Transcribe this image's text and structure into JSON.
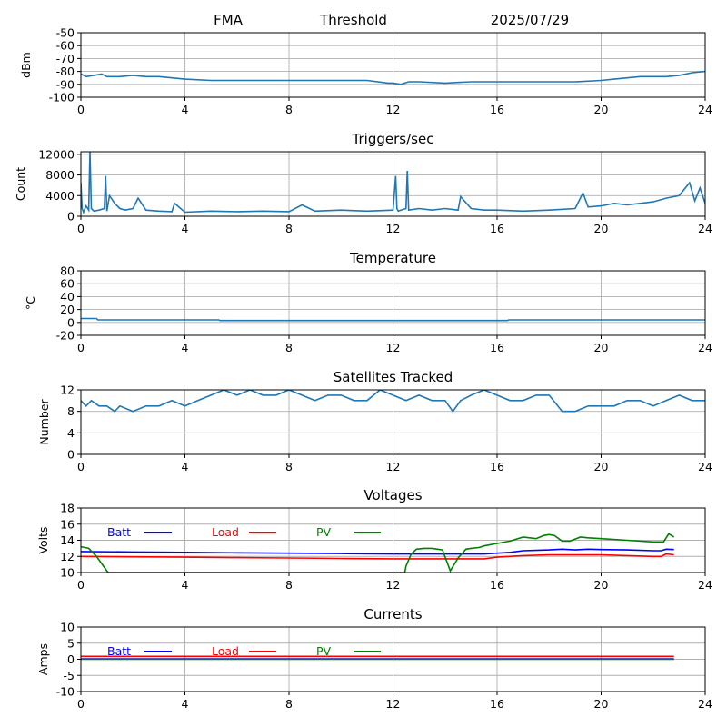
{
  "header": {
    "station": "FMA",
    "mode": "Threshold",
    "date": "2025/07/29"
  },
  "colors": {
    "series": "#1f77b4",
    "batt": "#0000ff",
    "load": "#ff0000",
    "pv": "#008000",
    "grid": "#b0b0b0",
    "axes": "#000000"
  },
  "chart_data": [
    {
      "type": "line",
      "title": "",
      "ylabel": "dBm",
      "xlim": [
        0,
        24
      ],
      "ylim": [
        -100,
        -50
      ],
      "xticks": [
        0,
        4,
        8,
        12,
        16,
        20,
        24
      ],
      "yticks": [
        -100,
        -90,
        -80,
        -70,
        -60,
        -50
      ],
      "grid": true,
      "series": [
        {
          "x": [
            0,
            0.2,
            0.5,
            0.8,
            1.0,
            1.5,
            2.0,
            2.5,
            3.0,
            3.5,
            4.0,
            5.0,
            6.0,
            7.0,
            8.0,
            9.0,
            10.0,
            11.0,
            11.8,
            12.0,
            12.3,
            12.6,
            13.0,
            14.0,
            15.0,
            16.0,
            17.0,
            18.0,
            19.0,
            20.0,
            20.5,
            21.0,
            21.5,
            22.0,
            22.5,
            23.0,
            23.5,
            24.0
          ],
          "y": [
            -82,
            -84,
            -83,
            -82,
            -84,
            -84,
            -83,
            -84,
            -84,
            -85,
            -86,
            -87,
            -87,
            -87,
            -87,
            -87,
            -87,
            -87,
            -89,
            -89,
            -90,
            -88,
            -88,
            -89,
            -88,
            -88,
            -88,
            -88,
            -88,
            -87,
            -86,
            -85,
            -84,
            -84,
            -84,
            -83,
            -81,
            -80
          ]
        }
      ]
    },
    {
      "type": "line",
      "title": "Triggers/sec",
      "ylabel": "Count",
      "xlim": [
        0,
        24
      ],
      "ylim": [
        0,
        12500
      ],
      "xticks": [
        0,
        4,
        8,
        12,
        16,
        20,
        24
      ],
      "yticks": [
        0,
        4000,
        8000,
        12000
      ],
      "grid": true,
      "series": [
        {
          "x": [
            0,
            0.05,
            0.1,
            0.2,
            0.3,
            0.35,
            0.4,
            0.5,
            0.7,
            0.9,
            0.95,
            1.0,
            1.1,
            1.3,
            1.5,
            1.7,
            2.0,
            2.2,
            2.5,
            3.0,
            3.5,
            3.6,
            4.0,
            5.0,
            6.0,
            7.0,
            8.0,
            8.5,
            9.0,
            10.0,
            11.0,
            12.0,
            12.1,
            12.15,
            12.2,
            12.3,
            12.5,
            12.55,
            12.6,
            13.0,
            13.5,
            14.0,
            14.5,
            14.6,
            15.0,
            15.5,
            16.0,
            17.0,
            18.0,
            19.0,
            19.3,
            19.5,
            20.0,
            20.5,
            21.0,
            21.5,
            22.0,
            22.5,
            23.0,
            23.4,
            23.6,
            23.8,
            24.0
          ],
          "y": [
            6500,
            1500,
            800,
            2000,
            1200,
            12500,
            1500,
            1000,
            1200,
            1500,
            7800,
            1000,
            4000,
            2500,
            1500,
            1200,
            1500,
            3500,
            1200,
            1000,
            900,
            2500,
            800,
            1000,
            900,
            1000,
            900,
            2200,
            1000,
            1200,
            1000,
            1200,
            7800,
            1500,
            1000,
            1200,
            1500,
            8800,
            1200,
            1500,
            1200,
            1500,
            1200,
            3800,
            1500,
            1200,
            1200,
            1000,
            1200,
            1500,
            4500,
            1800,
            2000,
            2500,
            2200,
            2500,
            2800,
            3500,
            4000,
            6500,
            3000,
            5500,
            2500
          ]
        }
      ]
    },
    {
      "type": "line",
      "title": "Temperature",
      "ylabel": "°C",
      "xlim": [
        0,
        24
      ],
      "ylim": [
        -20,
        80
      ],
      "xticks": [
        0,
        4,
        8,
        12,
        16,
        20,
        24
      ],
      "yticks": [
        -20,
        0,
        20,
        40,
        60,
        80
      ],
      "grid": true,
      "series": [
        {
          "x": [
            0,
            0.6,
            0.65,
            5.3,
            5.35,
            16.4,
            16.45,
            24.0
          ],
          "y": [
            6,
            6,
            4,
            4,
            3,
            3,
            4,
            4
          ]
        }
      ]
    },
    {
      "type": "line",
      "title": "Satellites Tracked",
      "ylabel": "Number",
      "xlim": [
        0,
        24
      ],
      "ylim": [
        0,
        12
      ],
      "xticks": [
        0,
        4,
        8,
        12,
        16,
        20,
        24
      ],
      "yticks": [
        0,
        4,
        8,
        12
      ],
      "grid": true,
      "series": [
        {
          "x": [
            0,
            0.2,
            0.4,
            0.7,
            1.0,
            1.3,
            1.5,
            2.0,
            2.5,
            3.0,
            3.5,
            4.0,
            4.5,
            5.0,
            5.5,
            6.0,
            6.5,
            7.0,
            7.5,
            8.0,
            8.5,
            9.0,
            9.5,
            10.0,
            10.5,
            11.0,
            11.5,
            12.0,
            12.5,
            13.0,
            13.5,
            14.0,
            14.3,
            14.6,
            15.0,
            15.5,
            16.0,
            16.5,
            17.0,
            17.5,
            18.0,
            18.5,
            19.0,
            19.5,
            20.0,
            20.5,
            21.0,
            21.5,
            22.0,
            22.5,
            23.0,
            23.5,
            24.0
          ],
          "y": [
            10,
            9,
            10,
            9,
            9,
            8,
            9,
            8,
            9,
            9,
            10,
            9,
            10,
            11,
            12,
            11,
            12,
            11,
            11,
            12,
            11,
            10,
            11,
            11,
            10,
            10,
            12,
            11,
            10,
            11,
            10,
            10,
            8,
            10,
            11,
            12,
            11,
            10,
            10,
            11,
            11,
            8,
            8,
            9,
            9,
            9,
            10,
            10,
            9,
            10,
            11,
            10,
            10
          ]
        }
      ]
    },
    {
      "type": "line",
      "title": "Voltages",
      "ylabel": "Volts",
      "xlim": [
        0,
        24
      ],
      "ylim": [
        10,
        18
      ],
      "xticks": [
        0,
        4,
        8,
        12,
        16,
        20,
        24
      ],
      "yticks": [
        10,
        12,
        14,
        16,
        18
      ],
      "grid": true,
      "legend": "top-left, horizontal",
      "series": [
        {
          "name": "Batt",
          "color": "#0000ff",
          "x": [
            0,
            2,
            4,
            6,
            8,
            10,
            12,
            14,
            15.5,
            16.5,
            17,
            18,
            18.5,
            19,
            19.5,
            20,
            21,
            22,
            22.3,
            22.5,
            22.8
          ],
          "y": [
            12.6,
            12.55,
            12.5,
            12.45,
            12.4,
            12.35,
            12.3,
            12.3,
            12.3,
            12.5,
            12.7,
            12.8,
            12.9,
            12.8,
            12.9,
            12.85,
            12.8,
            12.7,
            12.7,
            12.9,
            12.85
          ]
        },
        {
          "name": "Load",
          "color": "#ff0000",
          "x": [
            0,
            2,
            4,
            6,
            8,
            10,
            12,
            14,
            15.5,
            16,
            17,
            18,
            19,
            20,
            21,
            22,
            22.3,
            22.5,
            22.8
          ],
          "y": [
            12.0,
            11.95,
            11.9,
            11.85,
            11.8,
            11.75,
            11.7,
            11.7,
            11.7,
            11.9,
            12.1,
            12.2,
            12.2,
            12.2,
            12.1,
            12.0,
            12.0,
            12.3,
            12.2
          ],
          "color_note": ""
        },
        {
          "name": "PV",
          "color": "#008000",
          "x": [
            0,
            0.3,
            0.6,
            1.0,
            1.05,
            12.45,
            12.5,
            12.7,
            12.9,
            13.2,
            13.5,
            13.9,
            14.2,
            14.5,
            14.8,
            15.0,
            15.3,
            15.5,
            16.0,
            16.5,
            17.0,
            17.5,
            17.8,
            18.0,
            18.2,
            18.5,
            18.8,
            19.2,
            19.5,
            20.0,
            21.0,
            22.0,
            22.4,
            22.6,
            22.8
          ],
          "y": [
            13.2,
            13.0,
            12.0,
            10.2,
            10.0,
            10.0,
            10.8,
            12.3,
            12.9,
            13.0,
            13.0,
            12.8,
            10.2,
            11.8,
            12.9,
            13.0,
            13.1,
            13.3,
            13.6,
            13.9,
            14.4,
            14.2,
            14.6,
            14.7,
            14.6,
            13.9,
            13.9,
            14.4,
            14.3,
            14.2,
            14.0,
            13.8,
            13.8,
            14.8,
            14.4
          ]
        }
      ]
    },
    {
      "type": "line",
      "title": "Currents",
      "ylabel": "Amps",
      "xlim": [
        0,
        24
      ],
      "ylim": [
        -10,
        10
      ],
      "xticks": [
        0,
        4,
        8,
        12,
        16,
        20,
        24
      ],
      "yticks": [
        -10,
        -5,
        0,
        5,
        10
      ],
      "grid": true,
      "legend": "top-left, horizontal",
      "series": [
        {
          "name": "Batt",
          "color": "#0000ff",
          "x": [
            0,
            22.8
          ],
          "y": [
            0.1,
            0.1
          ]
        },
        {
          "name": "Load",
          "color": "#ff0000",
          "x": [
            0,
            22.8
          ],
          "y": [
            0.9,
            0.9
          ]
        },
        {
          "name": "PV",
          "color": "#008000",
          "x": [
            0,
            22.8
          ],
          "y": [
            0.0,
            0.0
          ]
        }
      ]
    }
  ]
}
